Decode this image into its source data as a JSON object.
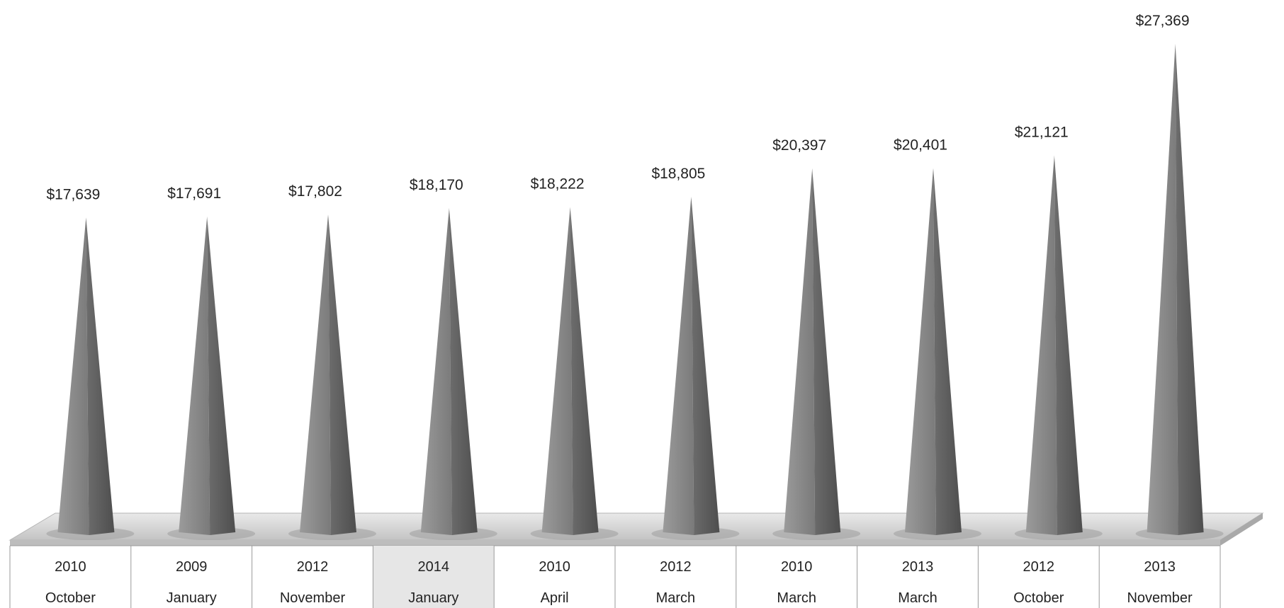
{
  "chart_data": {
    "type": "bar",
    "shape": "3d-pyramid",
    "categories": [
      [
        "2010",
        "October"
      ],
      [
        "2009",
        "January"
      ],
      [
        "2012",
        "November"
      ],
      [
        "2014",
        "January"
      ],
      [
        "2010",
        "April"
      ],
      [
        "2012",
        "March"
      ],
      [
        "2010",
        "March"
      ],
      [
        "2013",
        "March"
      ],
      [
        "2012",
        "October"
      ],
      [
        "2013",
        "November"
      ]
    ],
    "values": [
      17639,
      17691,
      17802,
      18170,
      18222,
      18805,
      20397,
      20401,
      21121,
      27369
    ],
    "data_labels": [
      "$17,639",
      "$17,691",
      "$17,802",
      "$18,170",
      "$18,222",
      "$18,805",
      "$20,397",
      "$20,401",
      "$21,121",
      "$27,369"
    ],
    "highlighted_category_index": 3,
    "title": "",
    "xlabel": "",
    "ylabel": "",
    "grid": false,
    "legend": "none",
    "colors": {
      "pyramid_front": "#8a8a8a",
      "pyramid_shadow": "#5c5c5c",
      "floor": "#d6d6d6",
      "highlight_cell": "#e6e6e6",
      "table_line": "#9a9a9a"
    }
  }
}
